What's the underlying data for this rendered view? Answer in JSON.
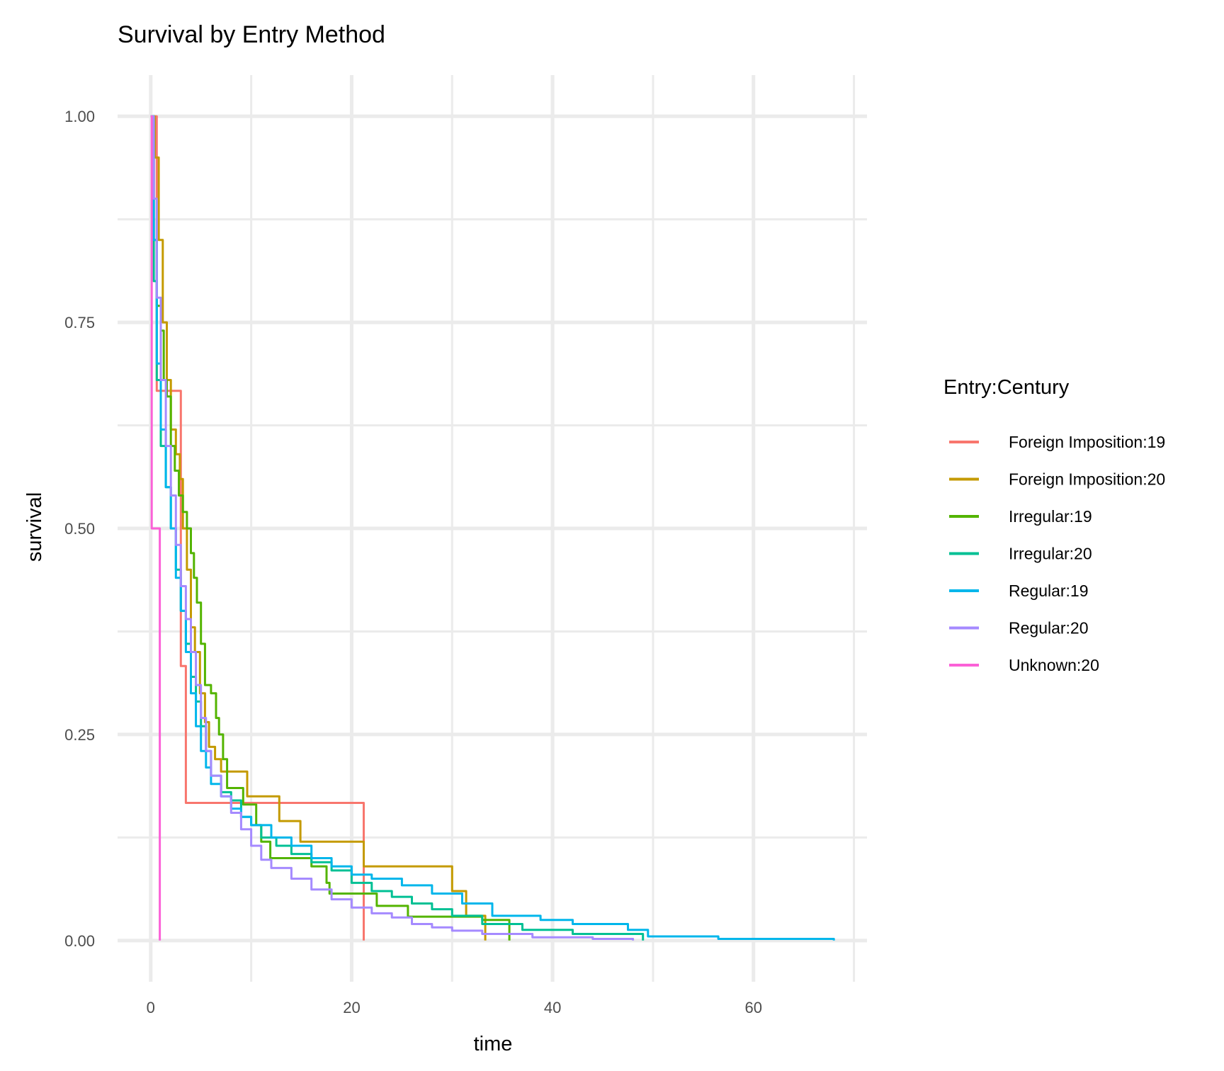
{
  "chart_data": {
    "type": "line",
    "step": true,
    "title": "Survival by Entry Method",
    "xlabel": "time",
    "ylabel": "survival",
    "xlim": [
      -3.3,
      71.3
    ],
    "ylim": [
      -0.05,
      1.05
    ],
    "x_ticks": [
      {
        "value": 0,
        "label": "0"
      },
      {
        "value": 20,
        "label": "20"
      },
      {
        "value": 40,
        "label": "40"
      },
      {
        "value": 60,
        "label": "60"
      }
    ],
    "x_minor": [
      10,
      30,
      50,
      70
    ],
    "y_ticks": [
      {
        "value": 0,
        "label": "0.00"
      },
      {
        "value": 0.25,
        "label": "0.25"
      },
      {
        "value": 0.5,
        "label": "0.50"
      },
      {
        "value": 0.75,
        "label": "0.75"
      },
      {
        "value": 1.0,
        "label": "1.00"
      }
    ],
    "y_minor": [
      0.125,
      0.375,
      0.625,
      0.875
    ],
    "grid": true,
    "legend": {
      "title": "Entry:Century",
      "position": "right"
    },
    "series": [
      {
        "name": "Foreign Imposition:19",
        "color": "#F8766D",
        "points": [
          [
            0,
            1.0
          ],
          [
            0.4,
            1.0
          ],
          [
            0.6,
            0.667
          ],
          [
            2.0,
            0.667
          ],
          [
            3.0,
            0.333
          ],
          [
            3.4,
            0.333
          ],
          [
            3.5,
            0.167
          ],
          [
            21.2,
            0.167
          ],
          [
            21.2,
            0.0
          ]
        ]
      },
      {
        "name": "Foreign Imposition:20",
        "color": "#C49A00",
        "points": [
          [
            0,
            1.0
          ],
          [
            0.4,
            0.95
          ],
          [
            0.8,
            0.85
          ],
          [
            1.2,
            0.75
          ],
          [
            1.6,
            0.68
          ],
          [
            2.0,
            0.62
          ],
          [
            2.5,
            0.59
          ],
          [
            2.9,
            0.56
          ],
          [
            3.2,
            0.5
          ],
          [
            3.6,
            0.45
          ],
          [
            4.0,
            0.38
          ],
          [
            4.4,
            0.35
          ],
          [
            4.9,
            0.3
          ],
          [
            5.4,
            0.265
          ],
          [
            5.8,
            0.235
          ],
          [
            6.4,
            0.22
          ],
          [
            7.0,
            0.205
          ],
          [
            9.6,
            0.175
          ],
          [
            12.8,
            0.145
          ],
          [
            14.9,
            0.12
          ],
          [
            21.2,
            0.09
          ],
          [
            30.0,
            0.06
          ],
          [
            31.4,
            0.03
          ],
          [
            33.3,
            0.0
          ]
        ]
      },
      {
        "name": "Irregular:19",
        "color": "#53B400",
        "points": [
          [
            0,
            1.0
          ],
          [
            0.3,
            0.85
          ],
          [
            0.6,
            0.77
          ],
          [
            1.0,
            0.74
          ],
          [
            1.3,
            0.68
          ],
          [
            1.6,
            0.66
          ],
          [
            2.0,
            0.6
          ],
          [
            2.4,
            0.57
          ],
          [
            2.8,
            0.54
          ],
          [
            3.2,
            0.52
          ],
          [
            3.6,
            0.5
          ],
          [
            4.0,
            0.47
          ],
          [
            4.3,
            0.44
          ],
          [
            4.6,
            0.41
          ],
          [
            5.0,
            0.36
          ],
          [
            5.4,
            0.31
          ],
          [
            6.0,
            0.3
          ],
          [
            6.5,
            0.27
          ],
          [
            6.8,
            0.25
          ],
          [
            7.2,
            0.22
          ],
          [
            7.6,
            0.185
          ],
          [
            9.2,
            0.165
          ],
          [
            10.5,
            0.14
          ],
          [
            11.0,
            0.12
          ],
          [
            11.9,
            0.1
          ],
          [
            16.0,
            0.09
          ],
          [
            17.5,
            0.07
          ],
          [
            17.8,
            0.057
          ],
          [
            22.5,
            0.042
          ],
          [
            25.6,
            0.029
          ],
          [
            33.0,
            0.025
          ],
          [
            35.7,
            0.0
          ]
        ]
      },
      {
        "name": "Irregular:20",
        "color": "#00C094",
        "points": [
          [
            0,
            1.0
          ],
          [
            0.3,
            0.8
          ],
          [
            0.6,
            0.68
          ],
          [
            1.0,
            0.6
          ],
          [
            1.5,
            0.55
          ],
          [
            2.0,
            0.5
          ],
          [
            2.5,
            0.45
          ],
          [
            3.0,
            0.4
          ],
          [
            3.5,
            0.36
          ],
          [
            4.0,
            0.32
          ],
          [
            4.5,
            0.29
          ],
          [
            5.0,
            0.26
          ],
          [
            5.5,
            0.23
          ],
          [
            6.0,
            0.2
          ],
          [
            7.0,
            0.18
          ],
          [
            8.0,
            0.17
          ],
          [
            9.0,
            0.15
          ],
          [
            10.0,
            0.14
          ],
          [
            11.0,
            0.125
          ],
          [
            12.5,
            0.115
          ],
          [
            14.0,
            0.105
          ],
          [
            16.0,
            0.095
          ],
          [
            18.0,
            0.085
          ],
          [
            20.0,
            0.07
          ],
          [
            22.0,
            0.06
          ],
          [
            24.0,
            0.053
          ],
          [
            26.0,
            0.045
          ],
          [
            28.0,
            0.038
          ],
          [
            30.0,
            0.03
          ],
          [
            33.0,
            0.02
          ],
          [
            37.0,
            0.013
          ],
          [
            42.0,
            0.008
          ],
          [
            49.0,
            0.0
          ]
        ]
      },
      {
        "name": "Regular:19",
        "color": "#00B6EB",
        "points": [
          [
            0,
            1.0
          ],
          [
            0.3,
            0.85
          ],
          [
            0.6,
            0.7
          ],
          [
            1.0,
            0.62
          ],
          [
            1.5,
            0.55
          ],
          [
            2.0,
            0.5
          ],
          [
            2.5,
            0.44
          ],
          [
            3.0,
            0.4
          ],
          [
            3.5,
            0.35
          ],
          [
            4.0,
            0.3
          ],
          [
            4.5,
            0.26
          ],
          [
            5.0,
            0.23
          ],
          [
            5.5,
            0.21
          ],
          [
            6.0,
            0.19
          ],
          [
            7.0,
            0.175
          ],
          [
            8.0,
            0.16
          ],
          [
            9.0,
            0.15
          ],
          [
            10.0,
            0.14
          ],
          [
            12.0,
            0.125
          ],
          [
            14.0,
            0.115
          ],
          [
            16.0,
            0.1
          ],
          [
            18.0,
            0.09
          ],
          [
            20.0,
            0.08
          ],
          [
            22.0,
            0.075
          ],
          [
            25.0,
            0.067
          ],
          [
            28.0,
            0.057
          ],
          [
            31.0,
            0.045
          ],
          [
            34.0,
            0.03
          ],
          [
            38.8,
            0.025
          ],
          [
            42.0,
            0.02
          ],
          [
            47.5,
            0.013
          ],
          [
            49.5,
            0.005
          ],
          [
            56.5,
            0.002
          ],
          [
            68.0,
            0.0
          ]
        ]
      },
      {
        "name": "Regular:20",
        "color": "#A58AFF",
        "points": [
          [
            0,
            1.0
          ],
          [
            0.3,
            0.9
          ],
          [
            0.6,
            0.78
          ],
          [
            1.0,
            0.68
          ],
          [
            1.5,
            0.6
          ],
          [
            2.0,
            0.54
          ],
          [
            2.5,
            0.48
          ],
          [
            3.0,
            0.43
          ],
          [
            3.5,
            0.39
          ],
          [
            4.0,
            0.35
          ],
          [
            4.5,
            0.31
          ],
          [
            5.0,
            0.27
          ],
          [
            5.5,
            0.23
          ],
          [
            6.0,
            0.2
          ],
          [
            7.0,
            0.175
          ],
          [
            8.0,
            0.155
          ],
          [
            9.0,
            0.135
          ],
          [
            10.0,
            0.115
          ],
          [
            11.0,
            0.098
          ],
          [
            12.0,
            0.088
          ],
          [
            14.0,
            0.075
          ],
          [
            16.0,
            0.062
          ],
          [
            18.0,
            0.05
          ],
          [
            20.0,
            0.04
          ],
          [
            22.0,
            0.033
          ],
          [
            24.0,
            0.028
          ],
          [
            26.0,
            0.02
          ],
          [
            28.0,
            0.016
          ],
          [
            30.0,
            0.012
          ],
          [
            33.0,
            0.008
          ],
          [
            38.0,
            0.004
          ],
          [
            44.0,
            0.002
          ],
          [
            48.0,
            0.0
          ]
        ]
      },
      {
        "name": "Unknown:20",
        "color": "#FB61D7",
        "points": [
          [
            0,
            1.0
          ],
          [
            0.1,
            0.5
          ],
          [
            0.9,
            0.5
          ],
          [
            0.9,
            0.0
          ]
        ]
      }
    ]
  }
}
